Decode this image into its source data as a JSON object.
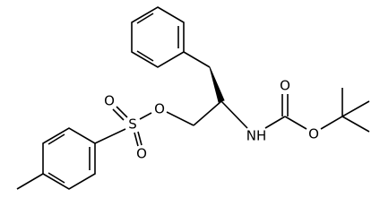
{
  "atoms": [
    {
      "label": "O"
    },
    {
      "label": "S"
    },
    {
      "label": "O"
    },
    {
      "label": "O"
    },
    {
      "label": "NH"
    },
    {
      "label": "O"
    },
    {
      "label": "O"
    }
  ]
}
